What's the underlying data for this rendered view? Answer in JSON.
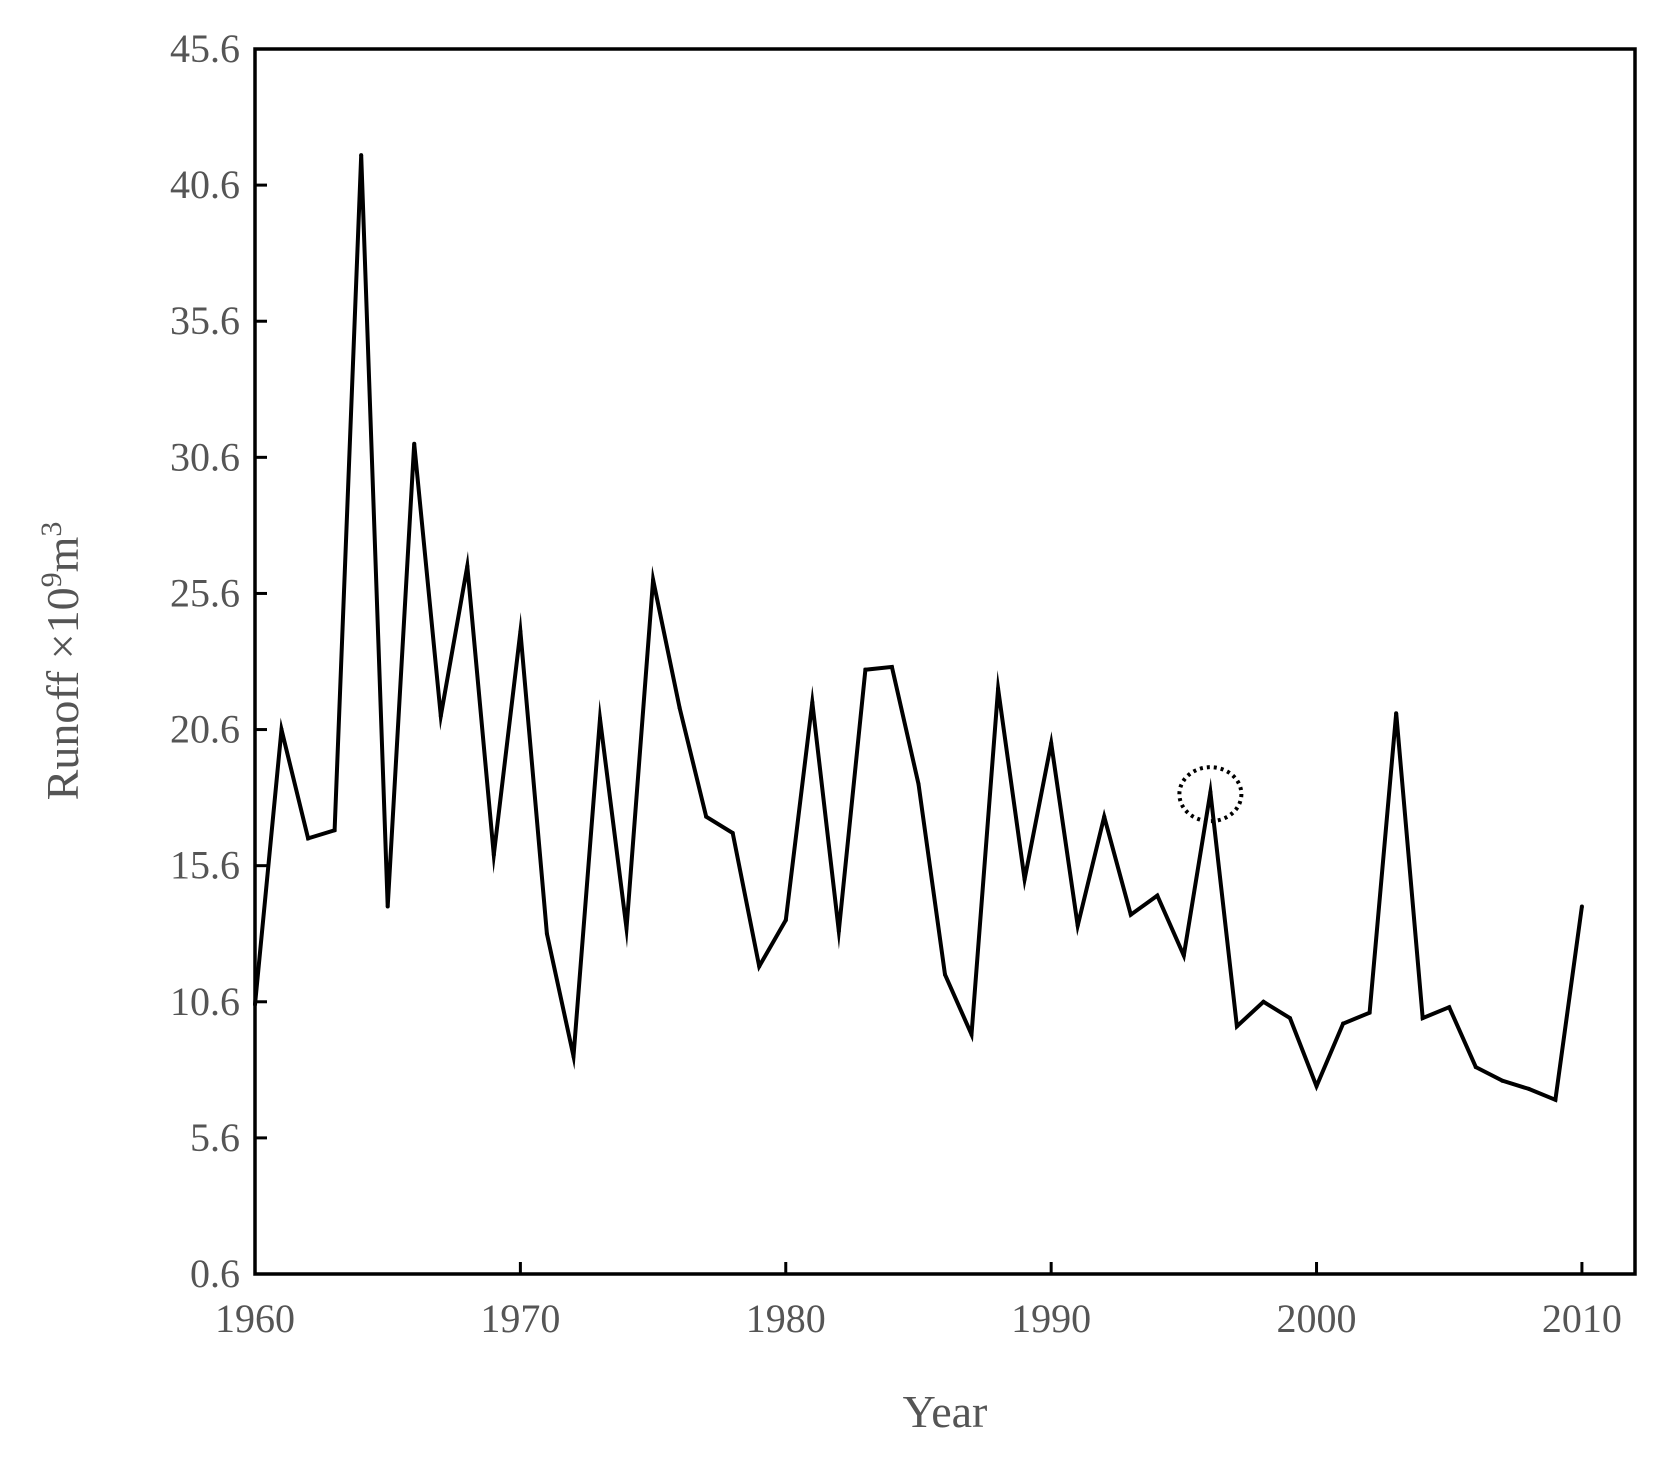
{
  "chart_data": {
    "type": "line",
    "xlabel": "Year",
    "ylabel": {
      "prefix": "Runoff ×10",
      "exp1": "9",
      "mid": "m",
      "exp2": "3"
    },
    "xlim": [
      1960,
      2012
    ],
    "ylim": [
      0.6,
      45.6
    ],
    "xticks": [
      1960,
      1970,
      1980,
      1990,
      2000,
      2010
    ],
    "yticks": [
      0.6,
      5.6,
      10.6,
      15.6,
      20.6,
      25.6,
      30.6,
      35.6,
      40.6,
      45.6
    ],
    "ytick_labels": [
      "0.6",
      "5.6",
      "10.6",
      "15.6",
      "20.6",
      "25.6",
      "30.6",
      "35.6",
      "40.6",
      "45.6"
    ],
    "grid": false,
    "line_color": "#000000",
    "series": [
      {
        "x": [
          1960,
          1961,
          1962,
          1963,
          1964,
          1965,
          1966,
          1967,
          1968,
          1969,
          1970,
          1971,
          1972,
          1973,
          1974,
          1975,
          1976,
          1977,
          1978,
          1979,
          1980,
          1981,
          1982,
          1983,
          1984,
          1985,
          1986,
          1987,
          1988,
          1989,
          1990,
          1991,
          1992,
          1993,
          1994,
          1995,
          1996,
          1997,
          1998,
          1999,
          2000,
          2001,
          2002,
          2003,
          2004,
          2005,
          2006,
          2007,
          2008,
          2009,
          2010
        ],
        "y": [
          10.5,
          20.6,
          16.6,
          16.9,
          41.7,
          14.1,
          31.1,
          21.1,
          26.6,
          16.0,
          24.2,
          13.1,
          8.6,
          21.0,
          13.3,
          26.1,
          21.4,
          17.4,
          16.8,
          11.9,
          13.6,
          21.6,
          13.2,
          22.8,
          22.9,
          18.6,
          11.6,
          9.4,
          22.1,
          15.1,
          20.1,
          13.4,
          17.4,
          13.8,
          14.5,
          12.3,
          18.3,
          9.7,
          10.6,
          10.0,
          7.5,
          9.8,
          10.2,
          21.2,
          10.0,
          10.4,
          8.2,
          7.7,
          7.4,
          7.0,
          14.1
        ]
      }
    ],
    "annotation": {
      "type": "dotted-circle",
      "x": 1996,
      "y": 18.3
    }
  }
}
